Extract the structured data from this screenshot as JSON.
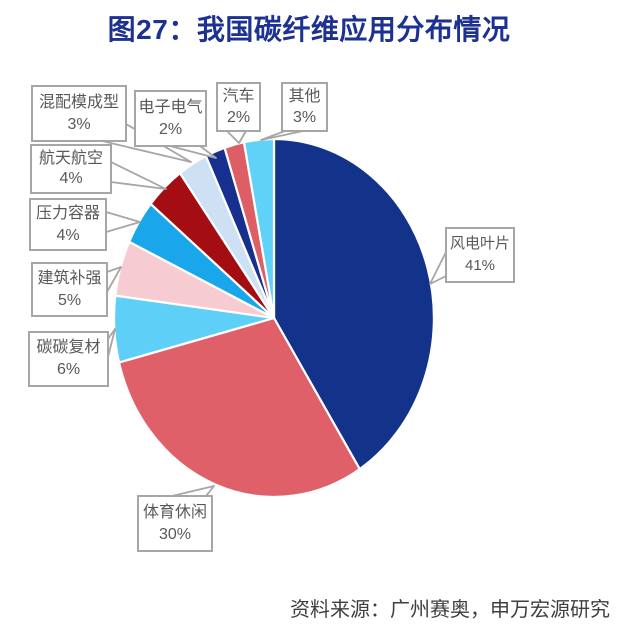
{
  "title": "图27：我国碳纤维应用分布情况",
  "source": "资料来源：广州赛奥，申万宏源研究",
  "palette": {
    "title_color": "#1C3190",
    "source_color": "#3F3F3F",
    "callout_border": "#A6A6A6",
    "callout_text": "#595959",
    "slice_divider": "#FFFFFF",
    "background": "#FFFFFF"
  },
  "chart_data": {
    "type": "pie",
    "title": "图27：我国碳纤维应用分布情况",
    "unit": "%",
    "total": 100,
    "start_angle_deg": 0,
    "direction": "clockwise",
    "legend": "none",
    "labels_style": "boxed callouts with gray leader pointers",
    "segments": [
      {
        "id": "wind-power-blades",
        "label": "风电叶片",
        "value": 41,
        "pct_label": "41%",
        "color": "#123389"
      },
      {
        "id": "sports-leisure",
        "label": "体育休闲",
        "value": 30,
        "pct_label": "30%",
        "color": "#E0606A"
      },
      {
        "id": "carbon-carbon-composites",
        "label": "碳碳复材",
        "value": 6,
        "pct_label": "6%",
        "color": "#5ECFF6"
      },
      {
        "id": "construction-reinforcement",
        "label": "建筑补强",
        "value": 5,
        "pct_label": "5%",
        "color": "#F6CBD2"
      },
      {
        "id": "pressure-vessels",
        "label": "压力容器",
        "value": 4,
        "pct_label": "4%",
        "color": "#19A6EA"
      },
      {
        "id": "aerospace",
        "label": "航天航空",
        "value": 4,
        "pct_label": "4%",
        "color": "#A40D12"
      },
      {
        "id": "compound-molding",
        "label": "混配模成型",
        "value": 3,
        "pct_label": "3%",
        "color": "#CEE0F4"
      },
      {
        "id": "electronics-electrical",
        "label": "电子电气",
        "value": 2,
        "pct_label": "2%",
        "color": "#172F8E"
      },
      {
        "id": "automotive",
        "label": "汽车",
        "value": 2,
        "pct_label": "2%",
        "color": "#DE5E66"
      },
      {
        "id": "others",
        "label": "其他",
        "value": 3,
        "pct_label": "3%",
        "color": "#61D2F7"
      }
    ]
  }
}
